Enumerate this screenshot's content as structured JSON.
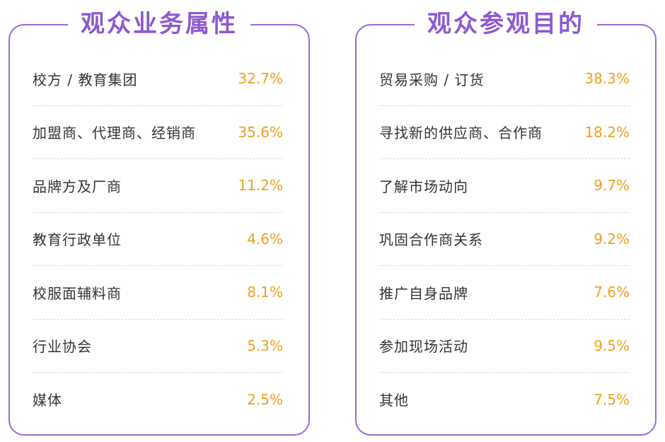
{
  "panels": [
    {
      "title": "观众业务属性",
      "items": [
        {
          "label": "校方 / 教育集团",
          "value": "32.7%"
        },
        {
          "label": "加盟商、代理商、经销商",
          "value": "35.6%"
        },
        {
          "label": "品牌方及厂商",
          "value": "11.2%"
        },
        {
          "label": "教育行政单位",
          "value": "4.6%"
        },
        {
          "label": "校服面辅料商",
          "value": "8.1%"
        },
        {
          "label": "行业协会",
          "value": "5.3%"
        },
        {
          "label": "媒体",
          "value": "2.5%"
        }
      ]
    },
    {
      "title": "观众参观目的",
      "items": [
        {
          "label": "贸易采购 / 订货",
          "value": "38.3%"
        },
        {
          "label": "寻找新的供应商、合作商",
          "value": "18.2%"
        },
        {
          "label": "了解市场动向",
          "value": "9.7%"
        },
        {
          "label": "巩固合作商关系",
          "value": "9.2%"
        },
        {
          "label": "推广自身品牌",
          "value": "7.6%"
        },
        {
          "label": "参加现场活动",
          "value": "9.5%"
        },
        {
          "label": "其他",
          "value": "7.5%"
        }
      ]
    }
  ],
  "colors": {
    "accent": "#8c5ad0",
    "border": "#9a6bd4",
    "value": "#f0a020",
    "label": "#333333"
  }
}
